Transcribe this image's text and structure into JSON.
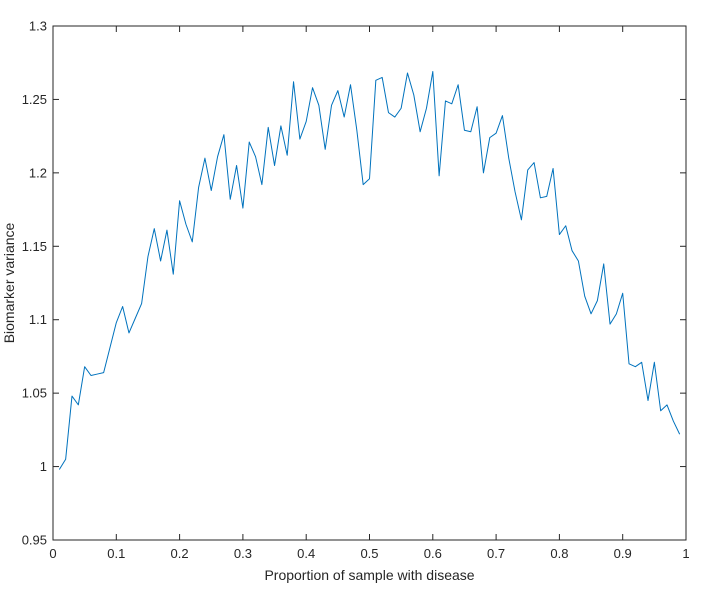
{
  "chart_data": {
    "type": "line",
    "title": "",
    "xlabel": "Proportion of sample with disease",
    "ylabel": "Biomarker variance",
    "xlim": [
      0,
      1
    ],
    "ylim": [
      0.95,
      1.3
    ],
    "grid": false,
    "legend": "none",
    "xticks": [
      {
        "value": 0,
        "label": "0"
      },
      {
        "value": 0.1,
        "label": "0.1"
      },
      {
        "value": 0.2,
        "label": "0.2"
      },
      {
        "value": 0.3,
        "label": "0.3"
      },
      {
        "value": 0.4,
        "label": "0.4"
      },
      {
        "value": 0.5,
        "label": "0.5"
      },
      {
        "value": 0.6,
        "label": "0.6"
      },
      {
        "value": 0.7,
        "label": "0.7"
      },
      {
        "value": 0.8,
        "label": "0.8"
      },
      {
        "value": 0.9,
        "label": "0.9"
      },
      {
        "value": 1,
        "label": "1"
      }
    ],
    "yticks": [
      {
        "value": 0.95,
        "label": "0.95"
      },
      {
        "value": 1,
        "label": "1"
      },
      {
        "value": 1.05,
        "label": "1.05"
      },
      {
        "value": 1.1,
        "label": "1.1"
      },
      {
        "value": 1.15,
        "label": "1.15"
      },
      {
        "value": 1.2,
        "label": "1.2"
      },
      {
        "value": 1.25,
        "label": "1.25"
      },
      {
        "value": 1.3,
        "label": "1.3"
      }
    ],
    "series": [
      {
        "color": "#0072BD",
        "x": [
          0.01,
          0.02,
          0.03,
          0.04,
          0.05,
          0.06,
          0.07,
          0.08,
          0.09,
          0.1,
          0.11,
          0.12,
          0.13,
          0.14,
          0.15,
          0.16,
          0.17,
          0.18,
          0.19,
          0.2,
          0.21,
          0.22,
          0.23,
          0.24,
          0.25,
          0.26,
          0.27,
          0.28,
          0.29,
          0.3,
          0.31,
          0.32,
          0.33,
          0.34,
          0.35,
          0.36,
          0.37,
          0.38,
          0.39,
          0.4,
          0.41,
          0.42,
          0.43,
          0.44,
          0.45,
          0.46,
          0.47,
          0.48,
          0.49,
          0.5,
          0.51,
          0.52,
          0.53,
          0.54,
          0.55,
          0.56,
          0.57,
          0.58,
          0.59,
          0.6,
          0.61,
          0.62,
          0.63,
          0.64,
          0.65,
          0.66,
          0.67,
          0.68,
          0.69,
          0.7,
          0.71,
          0.72,
          0.73,
          0.74,
          0.75,
          0.76,
          0.77,
          0.78,
          0.79,
          0.8,
          0.81,
          0.82,
          0.83,
          0.84,
          0.85,
          0.86,
          0.87,
          0.88,
          0.89,
          0.9,
          0.91,
          0.92,
          0.93,
          0.94,
          0.95,
          0.96,
          0.97,
          0.98,
          0.99
        ],
        "y": [
          0.998,
          1.005,
          1.048,
          1.042,
          1.068,
          1.062,
          1.063,
          1.064,
          1.081,
          1.098,
          1.109,
          1.091,
          1.101,
          1.111,
          1.143,
          1.162,
          1.14,
          1.161,
          1.131,
          1.181,
          1.165,
          1.153,
          1.19,
          1.21,
          1.188,
          1.211,
          1.226,
          1.182,
          1.205,
          1.176,
          1.221,
          1.211,
          1.192,
          1.231,
          1.205,
          1.232,
          1.212,
          1.262,
          1.223,
          1.235,
          1.258,
          1.246,
          1.216,
          1.246,
          1.256,
          1.238,
          1.26,
          1.229,
          1.192,
          1.196,
          1.263,
          1.265,
          1.241,
          1.238,
          1.244,
          1.268,
          1.253,
          1.228,
          1.244,
          1.269,
          1.198,
          1.249,
          1.247,
          1.26,
          1.229,
          1.228,
          1.245,
          1.2,
          1.224,
          1.227,
          1.239,
          1.21,
          1.187,
          1.168,
          1.202,
          1.207,
          1.183,
          1.184,
          1.203,
          1.158,
          1.164,
          1.147,
          1.14,
          1.116,
          1.104,
          1.113,
          1.138,
          1.097,
          1.104,
          1.118,
          1.07,
          1.068,
          1.071,
          1.045,
          1.071,
          1.038,
          1.042,
          1.031,
          1.022
        ]
      }
    ]
  }
}
